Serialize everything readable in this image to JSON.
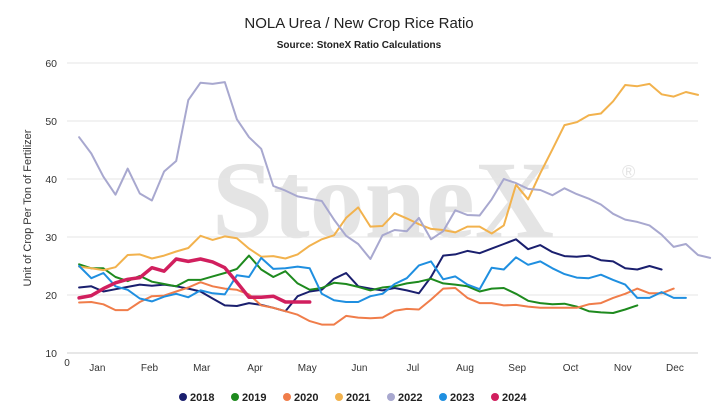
{
  "chart_data": {
    "type": "line",
    "title": "NOLA Urea / New Crop Rice Ratio",
    "subtitle": "Source: StoneX Ratio Calculations",
    "watermark": "StoneX",
    "watermark_mark": "®",
    "ylabel": "Unit of Crop Per Ton of Fertilizer",
    "xlabel": "",
    "ylim": [
      10,
      60
    ],
    "yticks": [
      10,
      20,
      30,
      40,
      50,
      60
    ],
    "xlim": [
      0,
      52
    ],
    "x_origin_label": "0",
    "month_ticks": [
      {
        "label": "Jan",
        "week": 2.5
      },
      {
        "label": "Feb",
        "week": 6.8
      },
      {
        "label": "Mar",
        "week": 11.1
      },
      {
        "label": "Apr",
        "week": 15.5
      },
      {
        "label": "May",
        "week": 19.8
      },
      {
        "label": "Jun",
        "week": 24.1
      },
      {
        "label": "Jul",
        "week": 28.5
      },
      {
        "label": "Aug",
        "week": 32.8
      },
      {
        "label": "Sep",
        "week": 37.1
      },
      {
        "label": "Oct",
        "week": 41.5
      },
      {
        "label": "Nov",
        "week": 45.8
      },
      {
        "label": "Dec",
        "week": 50.1
      }
    ],
    "grid": true,
    "legend_position": "bottom",
    "series": [
      {
        "name": "2018",
        "color": "#1a1f6e",
        "width": 2,
        "x_start": 1,
        "values": [
          21.3,
          21.5,
          20.6,
          21,
          21.4,
          21.8,
          21.6,
          21.8,
          21.5,
          21.1,
          20.6,
          19.4,
          18.2,
          18.1,
          18.6,
          18.3,
          17.8,
          17.2,
          19.8,
          20.6,
          20.9,
          22.8,
          23.8,
          21.5,
          21.1,
          20.8,
          21.2,
          20.8,
          20.3,
          23.1,
          26.8,
          27,
          27.6,
          27.2,
          28,
          28.8,
          29.6,
          27.9,
          28.6,
          27.4,
          26.7,
          26.6,
          26.8,
          26,
          25.8,
          24.6,
          24.4,
          25,
          24.4
        ]
      },
      {
        "name": "2019",
        "color": "#1e8a1e",
        "width": 2,
        "x_start": 1,
        "values": [
          25.3,
          24.6,
          24.6,
          23.1,
          22.4,
          23.3,
          22.3,
          21.9,
          21.5,
          22.6,
          22.6,
          23.2,
          23.8,
          24.5,
          26.8,
          24.4,
          23.1,
          24.1,
          22,
          20.9,
          21.2,
          22.1,
          21.9,
          21.4,
          20.8,
          21.3,
          21.5,
          22,
          22.3,
          22.8,
          22,
          21.8,
          21.5,
          20.6,
          21.1,
          21.2,
          20.2,
          19,
          18.6,
          18.4,
          18.5,
          18,
          17.2,
          17,
          16.9,
          17.5,
          18.2
        ]
      },
      {
        "name": "2020",
        "color": "#f07d4a",
        "width": 2,
        "x_start": 1,
        "values": [
          18.7,
          18.8,
          18.4,
          17.4,
          17.4,
          18.8,
          19.8,
          19.9,
          20.6,
          21.3,
          22.2,
          21.5,
          21.1,
          20.9,
          20.1,
          18.2,
          17.8,
          17.2,
          16.6,
          15.5,
          14.9,
          14.9,
          16.4,
          16.1,
          16,
          16.1,
          17.3,
          17.6,
          17.5,
          19.2,
          21.1,
          21.2,
          19.5,
          18.6,
          18.6,
          18.2,
          18.3,
          18,
          17.8,
          17.8,
          17.8,
          17.8,
          18.4,
          18.6,
          19.5,
          20.2,
          21.1,
          20.3,
          20.3,
          21.1
        ]
      },
      {
        "name": "2021",
        "color": "#f2b24d",
        "width": 2,
        "x_start": 1,
        "values": [
          24.9,
          24.6,
          24.3,
          24.8,
          26.9,
          27,
          26.3,
          26.8,
          27.5,
          28.1,
          30.2,
          29.5,
          30.1,
          29.8,
          28,
          26.6,
          26.7,
          26.3,
          27,
          28.5,
          29.6,
          30.3,
          33.3,
          35.1,
          31.8,
          31.9,
          34.1,
          33.2,
          32.2,
          31.4,
          31.2,
          30.8,
          31.8,
          31.8,
          30.6,
          32,
          39,
          36.5,
          41,
          45.1,
          49.3,
          49.8,
          51,
          51.3,
          53.4,
          56.2,
          56,
          56.4,
          54.6,
          54.2,
          55,
          54.5
        ]
      },
      {
        "name": "2022",
        "color": "#a8a8cf",
        "width": 2,
        "x_start": 1,
        "values": [
          47.2,
          44.4,
          40.4,
          37.3,
          41.8,
          37.5,
          36.3,
          41.3,
          43.1,
          53.6,
          56.6,
          56.4,
          56.7,
          50.3,
          47.2,
          45.2,
          38.8,
          38,
          37,
          36.6,
          36.2,
          33,
          30.2,
          28.8,
          26.2,
          30.3,
          31.2,
          31,
          33.3,
          29.6,
          31,
          34.6,
          33.8,
          33.7,
          36.5,
          40,
          39.3,
          38.3,
          38.1,
          37.2,
          38.4,
          37.4,
          36.6,
          35.6,
          34,
          33,
          32.6,
          32,
          30.4,
          28.3,
          28.8,
          26.9,
          26.4
        ]
      },
      {
        "name": "2023",
        "color": "#1f8fe0",
        "width": 2,
        "x_start": 1,
        "values": [
          25,
          22.9,
          23.8,
          21.5,
          20.9,
          19.4,
          18.9,
          19.7,
          20.2,
          19.6,
          20.8,
          20.3,
          20.1,
          23.4,
          23.1,
          26.4,
          24.5,
          24.6,
          24.9,
          24.6,
          20.2,
          19.1,
          18.8,
          18.8,
          19.8,
          20.2,
          21.9,
          22.9,
          25.1,
          25.8,
          22.7,
          23.2,
          21.8,
          21,
          24.7,
          24.4,
          26.5,
          25.2,
          25.8,
          24.6,
          23.6,
          23,
          22.9,
          23.5,
          22.6,
          21.8,
          19.5,
          19.5,
          20.5,
          19.5,
          19.5
        ]
      },
      {
        "name": "2024",
        "color": "#d11f5e",
        "width": 3.5,
        "x_start": 1,
        "values": [
          19.5,
          19.9,
          21.1,
          22.1,
          22.7,
          23,
          24.7,
          24.1,
          26.2,
          25.8,
          26.2,
          25.7,
          24.7,
          22.2,
          19.6,
          19.6,
          19.8,
          18.8,
          18.8,
          18.8
        ]
      }
    ]
  }
}
